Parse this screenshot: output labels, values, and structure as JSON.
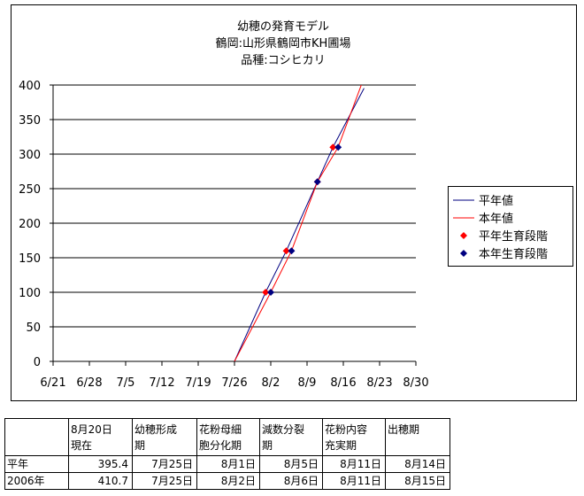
{
  "chart_data": {
    "type": "line",
    "title": [
      "幼穂の発育モデル",
      "鶴岡:山形県鶴岡市KH圃場",
      "品種:コシヒカリ"
    ],
    "xlim": [
      "6/21",
      "8/30"
    ],
    "xticks": [
      "6/21",
      "6/28",
      "7/5",
      "7/12",
      "7/19",
      "7/26",
      "8/2",
      "8/9",
      "8/16",
      "8/23",
      "8/30"
    ],
    "ylim": [
      0,
      400
    ],
    "yticks": [
      0,
      50,
      100,
      150,
      200,
      250,
      300,
      350,
      400
    ],
    "grid": true,
    "series": [
      {
        "name": "平年値",
        "kind": "line",
        "color": "#000080",
        "x": [
          "7/26",
          "8/1",
          "8/5",
          "8/11",
          "8/14",
          "8/20"
        ],
        "values": [
          0,
          100,
          160,
          260,
          310,
          395.4
        ]
      },
      {
        "name": "本年値",
        "kind": "line",
        "color": "#ff0000",
        "x": [
          "7/26",
          "8/2",
          "8/6",
          "8/11",
          "8/15",
          "8/20"
        ],
        "values": [
          0,
          100,
          160,
          260,
          310,
          410.7
        ]
      },
      {
        "name": "平年生育段階",
        "kind": "scatter",
        "color": "#ff0000",
        "x": [
          "8/1",
          "8/5",
          "8/11",
          "8/14"
        ],
        "values": [
          100,
          160,
          260,
          310
        ]
      },
      {
        "name": "本年生育段階",
        "kind": "scatter",
        "color": "#000080",
        "x": [
          "8/2",
          "8/6",
          "8/11",
          "8/15"
        ],
        "values": [
          100,
          160,
          260,
          310
        ]
      }
    ]
  },
  "table": {
    "header": [
      [],
      [
        "8月20日",
        "現在"
      ],
      [
        "幼穂形成",
        "期"
      ],
      [
        "花粉母細",
        "胞分化期"
      ],
      [
        "減数分裂",
        "期"
      ],
      [
        "花粉内容",
        "充実期"
      ],
      [
        "出穂期"
      ]
    ],
    "rows": [
      [
        "平年",
        395.4,
        "7月25日",
        "8月1日",
        "8月5日",
        "8月11日",
        "8月14日"
      ],
      [
        "2006年",
        410.7,
        "7月25日",
        "8月2日",
        "8月6日",
        "8月11日",
        "8月15日"
      ]
    ]
  }
}
